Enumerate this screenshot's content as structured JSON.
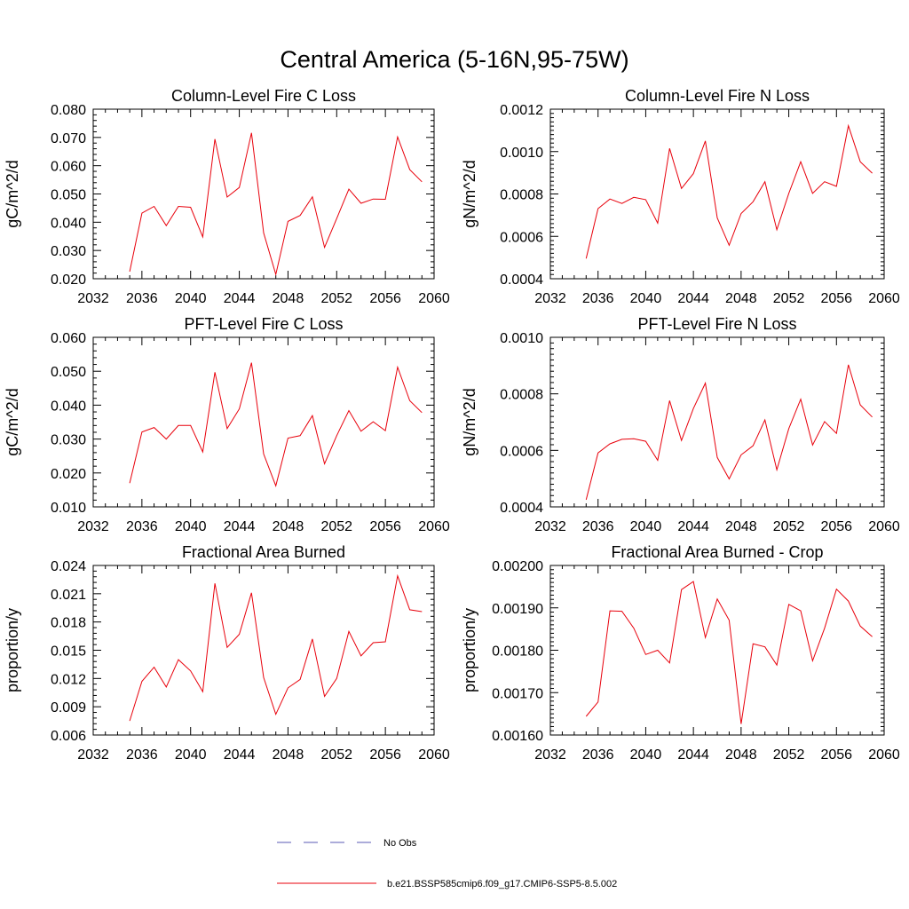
{
  "figure": {
    "title": "Central America (5-16N,95-75W)"
  },
  "legend": {
    "entries": [
      {
        "label": "No Obs",
        "color": "#5a5ab4",
        "dash": "dashed"
      },
      {
        "label": "b.e21.BSSP585cmip6.f09_g17.CMIP6-SSP5-8.5.002",
        "color": "#e8000b",
        "dash": "solid"
      }
    ]
  },
  "chart_data": [
    {
      "type": "line",
      "title": "Column-Level Fire C Loss",
      "ylabel": "gC/m^2/d",
      "xlim": [
        2032,
        2060
      ],
      "ylim": [
        0.02,
        0.08
      ],
      "xticks": [
        "2032",
        "2036",
        "2040",
        "2044",
        "2048",
        "2052",
        "2056",
        "2060"
      ],
      "yticks": [
        "0.020",
        "0.030",
        "0.040",
        "0.050",
        "0.060",
        "0.070",
        "0.080"
      ],
      "series": [
        {
          "color": "#e8000b",
          "x": [
            2035,
            2036,
            2037,
            2038,
            2039,
            2040,
            2041,
            2042,
            2043,
            2044,
            2045,
            2046,
            2047,
            2048,
            2049,
            2050,
            2051,
            2052,
            2053,
            2054,
            2055,
            2056,
            2057,
            2058,
            2059
          ],
          "y": [
            0.0225,
            0.0432,
            0.0456,
            0.0388,
            0.0456,
            0.0453,
            0.0348,
            0.0694,
            0.0489,
            0.0523,
            0.0716,
            0.0362,
            0.0215,
            0.0403,
            0.0424,
            0.049,
            0.0311,
            0.0413,
            0.0517,
            0.0467,
            0.0482,
            0.0481,
            0.0702,
            0.0586,
            0.0543
          ]
        }
      ]
    },
    {
      "type": "line",
      "title": "Column-Level Fire N Loss",
      "ylabel": "gN/m^2/d",
      "xlim": [
        2032,
        2060
      ],
      "ylim": [
        0.0004,
        0.0012
      ],
      "xticks": [
        "2032",
        "2036",
        "2040",
        "2044",
        "2048",
        "2052",
        "2056",
        "2060"
      ],
      "yticks": [
        "0.0004",
        "0.0006",
        "0.0008",
        "0.0010",
        "0.0012"
      ],
      "series": [
        {
          "color": "#e8000b",
          "x": [
            2035,
            2036,
            2037,
            2038,
            2039,
            2040,
            2041,
            2042,
            2043,
            2044,
            2045,
            2046,
            2047,
            2048,
            2049,
            2050,
            2051,
            2052,
            2053,
            2054,
            2055,
            2056,
            2057,
            2058,
            2059
          ],
          "y": [
            0.000495,
            0.000731,
            0.000776,
            0.000755,
            0.000784,
            0.000773,
            0.000662,
            0.001015,
            0.000826,
            0.000896,
            0.00105,
            0.000687,
            0.000558,
            0.000708,
            0.000763,
            0.000858,
            0.000631,
            0.000803,
            0.000952,
            0.000803,
            0.000858,
            0.000836,
            0.001122,
            0.000952,
            0.000898
          ]
        }
      ]
    },
    {
      "type": "line",
      "title": "PFT-Level Fire C Loss",
      "ylabel": "gC/m^2/d",
      "xlim": [
        2032,
        2060
      ],
      "ylim": [
        0.01,
        0.06
      ],
      "xticks": [
        "2032",
        "2036",
        "2040",
        "2044",
        "2048",
        "2052",
        "2056",
        "2060"
      ],
      "yticks": [
        "0.010",
        "0.020",
        "0.030",
        "0.040",
        "0.050",
        "0.060"
      ],
      "series": [
        {
          "color": "#e8000b",
          "x": [
            2035,
            2036,
            2037,
            2038,
            2039,
            2040,
            2041,
            2042,
            2043,
            2044,
            2045,
            2046,
            2047,
            2048,
            2049,
            2050,
            2051,
            2052,
            2053,
            2054,
            2055,
            2056,
            2057,
            2058,
            2059
          ],
          "y": [
            0.017,
            0.0321,
            0.0334,
            0.03,
            0.034,
            0.034,
            0.0262,
            0.0497,
            0.0331,
            0.0389,
            0.0525,
            0.0256,
            0.0162,
            0.0303,
            0.031,
            0.0369,
            0.0227,
            0.031,
            0.0384,
            0.0323,
            0.0351,
            0.0325,
            0.0512,
            0.0413,
            0.0378
          ]
        }
      ]
    },
    {
      "type": "line",
      "title": "PFT-Level Fire N Loss",
      "ylabel": "gN/m^2/d",
      "xlim": [
        2032,
        2060
      ],
      "ylim": [
        0.0004,
        0.001
      ],
      "xticks": [
        "2032",
        "2036",
        "2040",
        "2044",
        "2048",
        "2052",
        "2056",
        "2060"
      ],
      "yticks": [
        "0.0004",
        "0.0006",
        "0.0008",
        "0.0010"
      ],
      "series": [
        {
          "color": "#e8000b",
          "x": [
            2035,
            2036,
            2037,
            2038,
            2039,
            2040,
            2041,
            2042,
            2043,
            2044,
            2045,
            2046,
            2047,
            2048,
            2049,
            2050,
            2051,
            2052,
            2053,
            2054,
            2055,
            2056,
            2057,
            2058,
            2059
          ],
          "y": [
            0.000425,
            0.000591,
            0.000623,
            0.000639,
            0.000641,
            0.000632,
            0.000565,
            0.000776,
            0.000635,
            0.000748,
            0.000838,
            0.000575,
            0.000499,
            0.000584,
            0.000616,
            0.000708,
            0.000531,
            0.000677,
            0.000781,
            0.000619,
            0.000702,
            0.00066,
            0.000903,
            0.000761,
            0.000718
          ]
        }
      ]
    },
    {
      "type": "line",
      "title": "Fractional Area Burned",
      "ylabel": "proportion/y",
      "xlim": [
        2032,
        2060
      ],
      "ylim": [
        0.006,
        0.024
      ],
      "xticks": [
        "2032",
        "2036",
        "2040",
        "2044",
        "2048",
        "2052",
        "2056",
        "2060"
      ],
      "yticks": [
        "0.006",
        "0.009",
        "0.012",
        "0.015",
        "0.018",
        "0.021",
        "0.024"
      ],
      "series": [
        {
          "color": "#e8000b",
          "x": [
            2035,
            2036,
            2037,
            2038,
            2039,
            2040,
            2041,
            2042,
            2043,
            2044,
            2045,
            2046,
            2047,
            2048,
            2049,
            2050,
            2051,
            2052,
            2053,
            2054,
            2055,
            2056,
            2057,
            2058,
            2059
          ],
          "y": [
            0.0075,
            0.0117,
            0.0132,
            0.0111,
            0.014,
            0.0128,
            0.0106,
            0.0221,
            0.0153,
            0.0167,
            0.0211,
            0.0121,
            0.0082,
            0.011,
            0.0119,
            0.0162,
            0.0101,
            0.012,
            0.017,
            0.0144,
            0.0158,
            0.0159,
            0.0229,
            0.0193,
            0.0191
          ]
        }
      ]
    },
    {
      "type": "line",
      "title": "Fractional Area Burned - Crop",
      "ylabel": "proportion/y",
      "xlim": [
        2032,
        2060
      ],
      "ylim": [
        0.0016,
        0.002
      ],
      "xticks": [
        "2032",
        "2036",
        "2040",
        "2044",
        "2048",
        "2052",
        "2056",
        "2060"
      ],
      "yticks": [
        "0.00160",
        "0.00170",
        "0.00180",
        "0.00190",
        "0.00200"
      ],
      "series": [
        {
          "color": "#e8000b",
          "x": [
            2035,
            2036,
            2037,
            2038,
            2039,
            2040,
            2041,
            2042,
            2043,
            2044,
            2045,
            2046,
            2047,
            2048,
            2049,
            2050,
            2051,
            2052,
            2053,
            2054,
            2055,
            2056,
            2057,
            2058,
            2059
          ],
          "y": [
            0.001644,
            0.001678,
            0.001893,
            0.001892,
            0.001852,
            0.00179,
            0.0018,
            0.00177,
            0.001943,
            0.001962,
            0.00183,
            0.001921,
            0.001871,
            0.001626,
            0.001815,
            0.001808,
            0.001765,
            0.001908,
            0.001893,
            0.001775,
            0.001852,
            0.001944,
            0.001916,
            0.001857,
            0.001832
          ]
        }
      ]
    }
  ]
}
